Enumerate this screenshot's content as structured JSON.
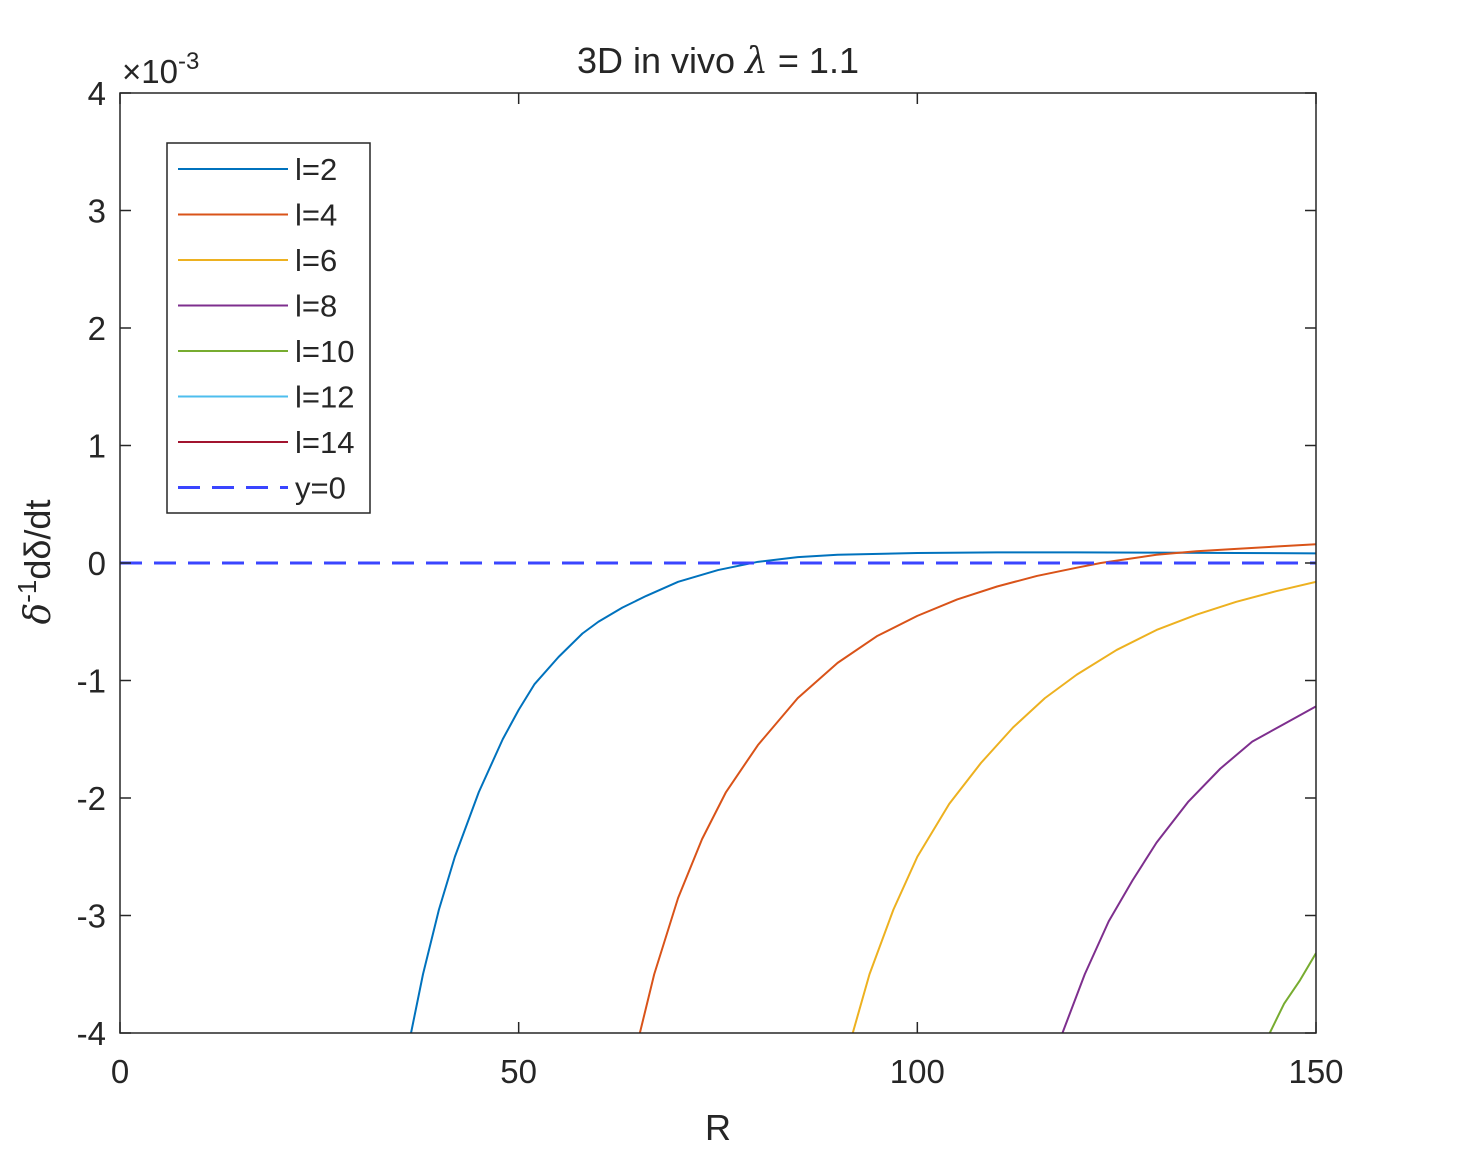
{
  "chart_data": {
    "type": "line",
    "title_prefix": "3D in vivo ",
    "title_symbol": "λ",
    "title_suffix": " = 1.1",
    "xlabel": "R",
    "ylabel_parts": [
      "δ",
      "-1",
      "dδ/dt"
    ],
    "y_exponent_prefix": "×10",
    "y_exponent_power": "-3",
    "xlim": [
      0,
      150
    ],
    "ylim": [
      -4,
      4
    ],
    "xticks": [
      0,
      50,
      100,
      150
    ],
    "yticks": [
      -4,
      -3,
      -2,
      -1,
      0,
      1,
      2,
      3,
      4
    ],
    "xtick_labels": [
      "0",
      "50",
      "100",
      "150"
    ],
    "ytick_labels": [
      "-4",
      "-3",
      "-2",
      "-1",
      "0",
      "1",
      "2",
      "3",
      "4"
    ],
    "grid": false,
    "legend_position": "top-left",
    "series": [
      {
        "name": "l=2",
        "color": "#0072BD",
        "dash": "solid",
        "x": [
          36.5,
          38,
          40,
          42,
          45,
          48,
          50,
          52,
          55,
          58,
          60,
          63,
          66,
          70,
          75,
          80,
          85,
          90,
          100,
          110,
          120,
          130,
          140,
          150
        ],
        "y": [
          -4.0,
          -3.5,
          -2.95,
          -2.5,
          -1.95,
          -1.5,
          -1.25,
          -1.03,
          -0.8,
          -0.6,
          -0.5,
          -0.38,
          -0.28,
          -0.16,
          -0.06,
          0.01,
          0.05,
          0.07,
          0.085,
          0.09,
          0.09,
          0.088,
          0.085,
          0.082
        ]
      },
      {
        "name": "l=4",
        "color": "#D95319",
        "dash": "solid",
        "x": [
          65.2,
          67,
          70,
          73,
          76,
          80,
          85,
          90,
          95,
          100,
          105,
          110,
          115,
          120,
          123,
          125,
          130,
          135,
          140,
          145,
          150
        ],
        "y": [
          -4.0,
          -3.5,
          -2.85,
          -2.35,
          -1.95,
          -1.55,
          -1.15,
          -0.85,
          -0.62,
          -0.45,
          -0.31,
          -0.2,
          -0.11,
          -0.04,
          0.0,
          0.02,
          0.07,
          0.1,
          0.12,
          0.14,
          0.16
        ]
      },
      {
        "name": "l=6",
        "color": "#EDB120",
        "dash": "solid",
        "x": [
          91.9,
          94,
          97,
          100,
          104,
          108,
          112,
          116,
          120,
          125,
          130,
          135,
          140,
          145,
          150
        ],
        "y": [
          -4.0,
          -3.5,
          -2.95,
          -2.5,
          -2.05,
          -1.7,
          -1.4,
          -1.15,
          -0.95,
          -0.74,
          -0.57,
          -0.44,
          -0.33,
          -0.24,
          -0.16
        ]
      },
      {
        "name": "l=8",
        "color": "#7E2F8E",
        "dash": "solid",
        "x": [
          118.2,
          121,
          124,
          127,
          130,
          134,
          138,
          142,
          146,
          150
        ],
        "y": [
          -4.0,
          -3.5,
          -3.05,
          -2.7,
          -2.38,
          -2.03,
          -1.75,
          -1.52,
          -1.37,
          -1.22
        ]
      },
      {
        "name": "l=10",
        "color": "#77AC30",
        "dash": "solid",
        "x": [
          144.2,
          146,
          148,
          150
        ],
        "y": [
          -4.0,
          -3.75,
          -3.55,
          -3.32
        ]
      },
      {
        "name": "l=12",
        "color": "#4DBEEE",
        "dash": "solid",
        "x": [],
        "y": []
      },
      {
        "name": "l=14",
        "color": "#A2142F",
        "dash": "solid",
        "x": [],
        "y": []
      },
      {
        "name": "y=0",
        "color": "#3A45FF",
        "dash": "dashed",
        "x": [
          0,
          150
        ],
        "y": [
          0,
          0
        ]
      }
    ]
  }
}
